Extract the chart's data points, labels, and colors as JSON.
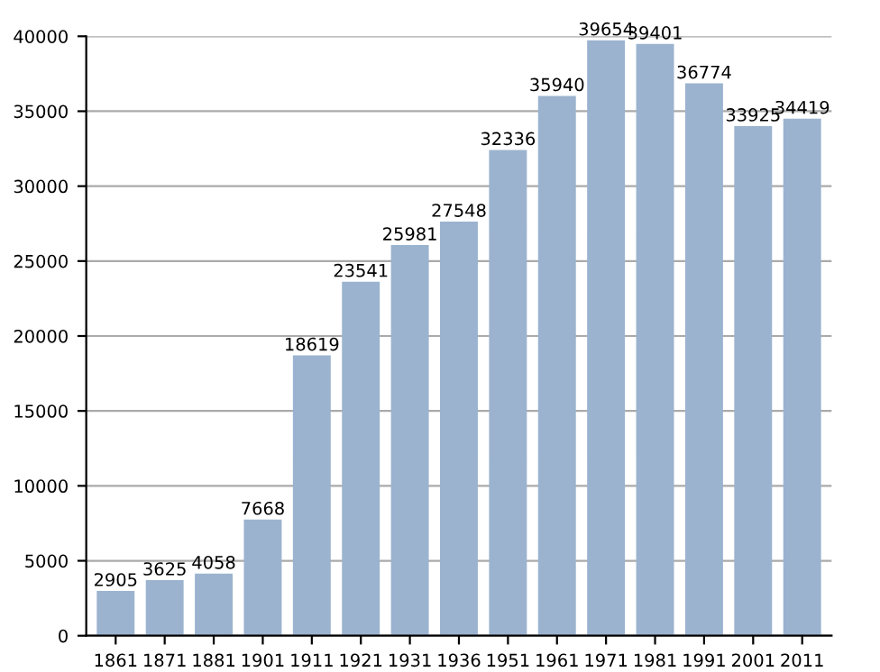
{
  "chart_data": {
    "type": "bar",
    "categories": [
      "1861",
      "1871",
      "1881",
      "1901",
      "1911",
      "1921",
      "1931",
      "1936",
      "1951",
      "1961",
      "1971",
      "1981",
      "1991",
      "2001",
      "2011"
    ],
    "values": [
      2905,
      3625,
      4058,
      7668,
      18619,
      23541,
      25981,
      27548,
      32336,
      35940,
      39654,
      39401,
      36774,
      33925,
      34419
    ],
    "color": "#9bb3cf",
    "ylim": [
      0,
      40000
    ],
    "yticks": [
      0,
      5000,
      10000,
      15000,
      20000,
      25000,
      30000,
      35000,
      40000
    ],
    "grid": "y",
    "data_labels": true
  }
}
